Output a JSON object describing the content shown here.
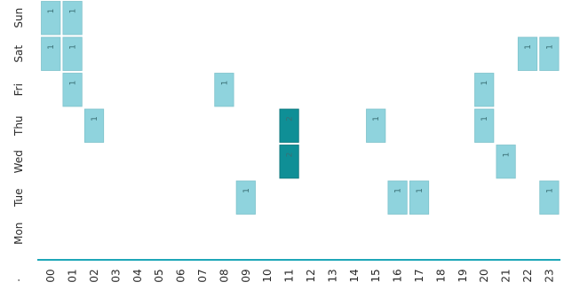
{
  "chart_data": {
    "type": "heatmap",
    "title": "",
    "xlabel": "",
    "ylabel": "",
    "corner_label": ".",
    "x": [
      "00",
      "01",
      "02",
      "03",
      "04",
      "05",
      "06",
      "07",
      "08",
      "09",
      "10",
      "11",
      "12",
      "13",
      "14",
      "15",
      "16",
      "17",
      "18",
      "19",
      "20",
      "21",
      "22",
      "23"
    ],
    "y": [
      "Sun",
      "Sat",
      "Fri",
      "Thu",
      "Wed",
      "Tue",
      "Mon"
    ],
    "cells": [
      {
        "day": "Sun",
        "hour": "00",
        "value": 1
      },
      {
        "day": "Sun",
        "hour": "01",
        "value": 1
      },
      {
        "day": "Sat",
        "hour": "00",
        "value": 1
      },
      {
        "day": "Sat",
        "hour": "01",
        "value": 1
      },
      {
        "day": "Sat",
        "hour": "22",
        "value": 1
      },
      {
        "day": "Sat",
        "hour": "23",
        "value": 1
      },
      {
        "day": "Fri",
        "hour": "01",
        "value": 1
      },
      {
        "day": "Fri",
        "hour": "08",
        "value": 1
      },
      {
        "day": "Fri",
        "hour": "20",
        "value": 1
      },
      {
        "day": "Thu",
        "hour": "02",
        "value": 1
      },
      {
        "day": "Thu",
        "hour": "11",
        "value": 2
      },
      {
        "day": "Thu",
        "hour": "15",
        "value": 1
      },
      {
        "day": "Thu",
        "hour": "20",
        "value": 1
      },
      {
        "day": "Wed",
        "hour": "11",
        "value": 2
      },
      {
        "day": "Wed",
        "hour": "21",
        "value": 1
      },
      {
        "day": "Tue",
        "hour": "09",
        "value": 1
      },
      {
        "day": "Tue",
        "hour": "16",
        "value": 1
      },
      {
        "day": "Tue",
        "hour": "17",
        "value": 1
      },
      {
        "day": "Tue",
        "hour": "23",
        "value": 1
      }
    ],
    "value_range": [
      0,
      2
    ],
    "colors": {
      "low": "#8fd3dd",
      "high": "#0f8f96",
      "low_border": "#7fc3cc",
      "high_border": "#0a7379",
      "axis": "#1ea7b8",
      "text": "#2b2b2b"
    },
    "grid": false,
    "legend": "none"
  }
}
